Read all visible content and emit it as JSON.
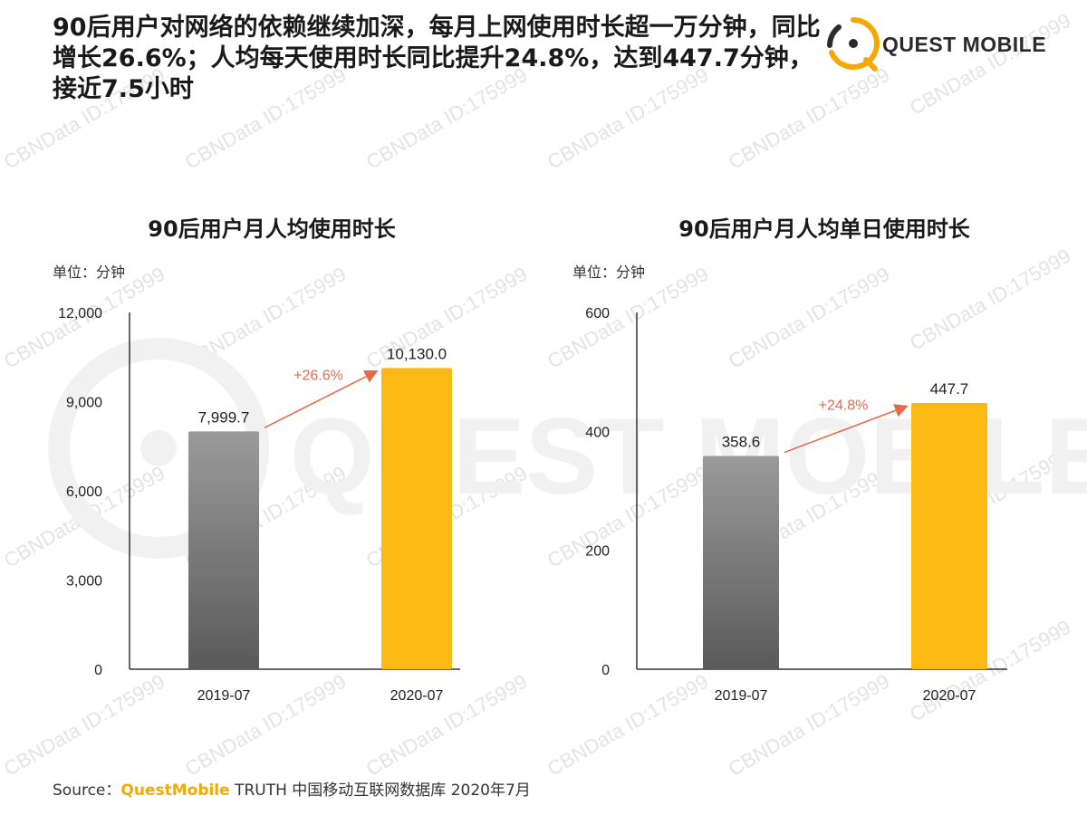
{
  "headline": "90后用户对网络的依赖继续加深，每月上网使用时长超一万分钟，同比增长26.6%；人均每天使用时长同比提升24.8%，达到447.7分钟，接近7.5小时",
  "logo": {
    "text": "QUEST MOBILE",
    "watermark_text": "QUEST MOBILE"
  },
  "watermark": "CBNData ID:175999",
  "colors": {
    "gray_top": "#9a9a9a",
    "gray_bottom": "#5a5a5a",
    "gold": "#fdb913",
    "accent": "#e8694a",
    "axis": "#333333"
  },
  "chart_data": [
    {
      "type": "bar",
      "title": "90后用户月人均使用时长",
      "unit": "单位：分钟",
      "categories": [
        "2019-07",
        "2020-07"
      ],
      "values": [
        7999.7,
        10130.0
      ],
      "value_labels": [
        "7,999.7",
        "10,130.0"
      ],
      "ylim": [
        0,
        12000
      ],
      "yticks": [
        0,
        3000,
        6000,
        9000,
        12000
      ],
      "ytick_labels": [
        "0",
        "3,000",
        "6,000",
        "9,000",
        "12,000"
      ],
      "growth_label": "+26.6%",
      "grid": false
    },
    {
      "type": "bar",
      "title": "90后用户月人均单日使用时长",
      "unit": "单位：分钟",
      "categories": [
        "2019-07",
        "2020-07"
      ],
      "values": [
        358.6,
        447.7
      ],
      "value_labels": [
        "358.6",
        "447.7"
      ],
      "ylim": [
        0,
        600
      ],
      "yticks": [
        0,
        200,
        400,
        600
      ],
      "ytick_labels": [
        "0",
        "200",
        "400",
        "600"
      ],
      "growth_label": "+24.8%",
      "grid": false
    }
  ],
  "source": {
    "prefix": "Source：",
    "brand": "QuestMobile",
    "rest": " TRUTH 中国移动互联网数据库 2020年7月"
  }
}
